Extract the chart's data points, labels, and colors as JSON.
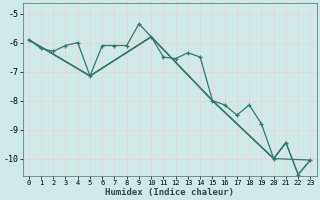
{
  "xlabel": "Humidex (Indice chaleur)",
  "background_color": "#cfe8e8",
  "grid_color": "#f0d0d0",
  "line_color": "#2e7b6e",
  "xlim": [
    -0.5,
    23.5
  ],
  "ylim": [
    -10.6,
    -4.65
  ],
  "xticks": [
    0,
    1,
    2,
    3,
    4,
    5,
    6,
    7,
    8,
    9,
    10,
    11,
    12,
    13,
    14,
    15,
    16,
    17,
    18,
    19,
    20,
    21,
    22,
    23
  ],
  "yticks": [
    -10,
    -9,
    -8,
    -7,
    -6,
    -5
  ],
  "series0_x": [
    0,
    1,
    2,
    3,
    4,
    5,
    6,
    7,
    8,
    9,
    10,
    11,
    12,
    13,
    14,
    15,
    16,
    17,
    18,
    19,
    20,
    21,
    22,
    23
  ],
  "series0_y": [
    -5.9,
    -6.2,
    -6.3,
    -6.1,
    -6.0,
    -7.15,
    -6.1,
    -6.1,
    -6.1,
    -5.35,
    -5.8,
    -6.5,
    -6.55,
    -6.35,
    -6.5,
    -8.0,
    -8.15,
    -8.5,
    -8.15,
    -8.8,
    -10.0,
    -9.45,
    -10.55,
    -10.05
  ],
  "series1_x": [
    0,
    5,
    10,
    15,
    20,
    23
  ],
  "series1_y": [
    -5.9,
    -7.15,
    -5.8,
    -8.0,
    -10.0,
    -10.05
  ],
  "series2_x": [
    0,
    5,
    10,
    15,
    20,
    21,
    22,
    23
  ],
  "series2_y": [
    -5.9,
    -7.15,
    -5.8,
    -8.0,
    -10.0,
    -9.45,
    -10.55,
    -10.05
  ],
  "series3_x": [
    0,
    5,
    10,
    15,
    20,
    21
  ],
  "series3_y": [
    -5.9,
    -7.15,
    -5.8,
    -8.0,
    -10.0,
    -9.45
  ]
}
